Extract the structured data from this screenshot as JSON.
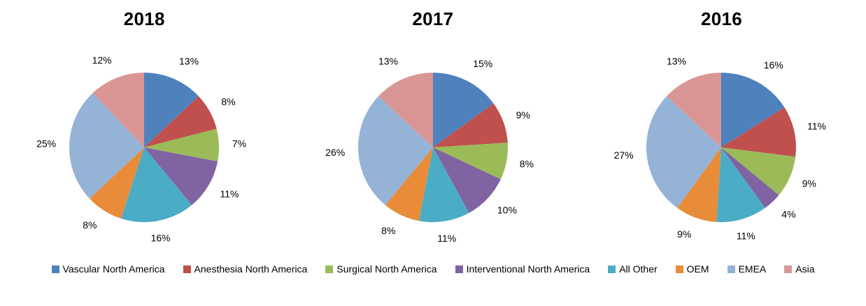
{
  "legend": {
    "items": [
      {
        "label": "Vascular North America",
        "color": "#4F81BD"
      },
      {
        "label": "Anesthesia North America",
        "color": "#C0504D"
      },
      {
        "label": "Surgical North America",
        "color": "#9BBB59"
      },
      {
        "label": "Interventional North America",
        "color": "#8064A2"
      },
      {
        "label": "All Other",
        "color": "#4BACC6"
      },
      {
        "label": "OEM",
        "color": "#E98C3A"
      },
      {
        "label": "EMEA",
        "color": "#95B3D7"
      },
      {
        "label": "Asia",
        "color": "#D99694"
      }
    ]
  },
  "chart_data": [
    {
      "type": "pie",
      "title": "2018",
      "categories": [
        "Vascular North America",
        "Anesthesia North America",
        "Surgical North America",
        "Interventional North America",
        "All Other",
        "OEM",
        "EMEA",
        "Asia"
      ],
      "values": [
        13,
        8,
        7,
        11,
        16,
        8,
        25,
        12
      ],
      "unit": "%",
      "legend_position": "bottom",
      "start_angle": "top",
      "direction": "clockwise"
    },
    {
      "type": "pie",
      "title": "2017",
      "categories": [
        "Vascular North America",
        "Anesthesia North America",
        "Surgical North America",
        "Interventional North America",
        "All Other",
        "OEM",
        "EMEA",
        "Asia"
      ],
      "values": [
        15,
        9,
        8,
        10,
        11,
        8,
        26,
        13
      ],
      "unit": "%",
      "legend_position": "bottom",
      "start_angle": "top",
      "direction": "clockwise"
    },
    {
      "type": "pie",
      "title": "2016",
      "categories": [
        "Vascular North America",
        "Anesthesia North America",
        "Surgical North America",
        "Interventional North America",
        "All Other",
        "OEM",
        "EMEA",
        "Asia"
      ],
      "values": [
        16,
        11,
        9,
        4,
        11,
        9,
        27,
        13
      ],
      "unit": "%",
      "legend_position": "bottom",
      "start_angle": "top",
      "direction": "clockwise"
    }
  ]
}
